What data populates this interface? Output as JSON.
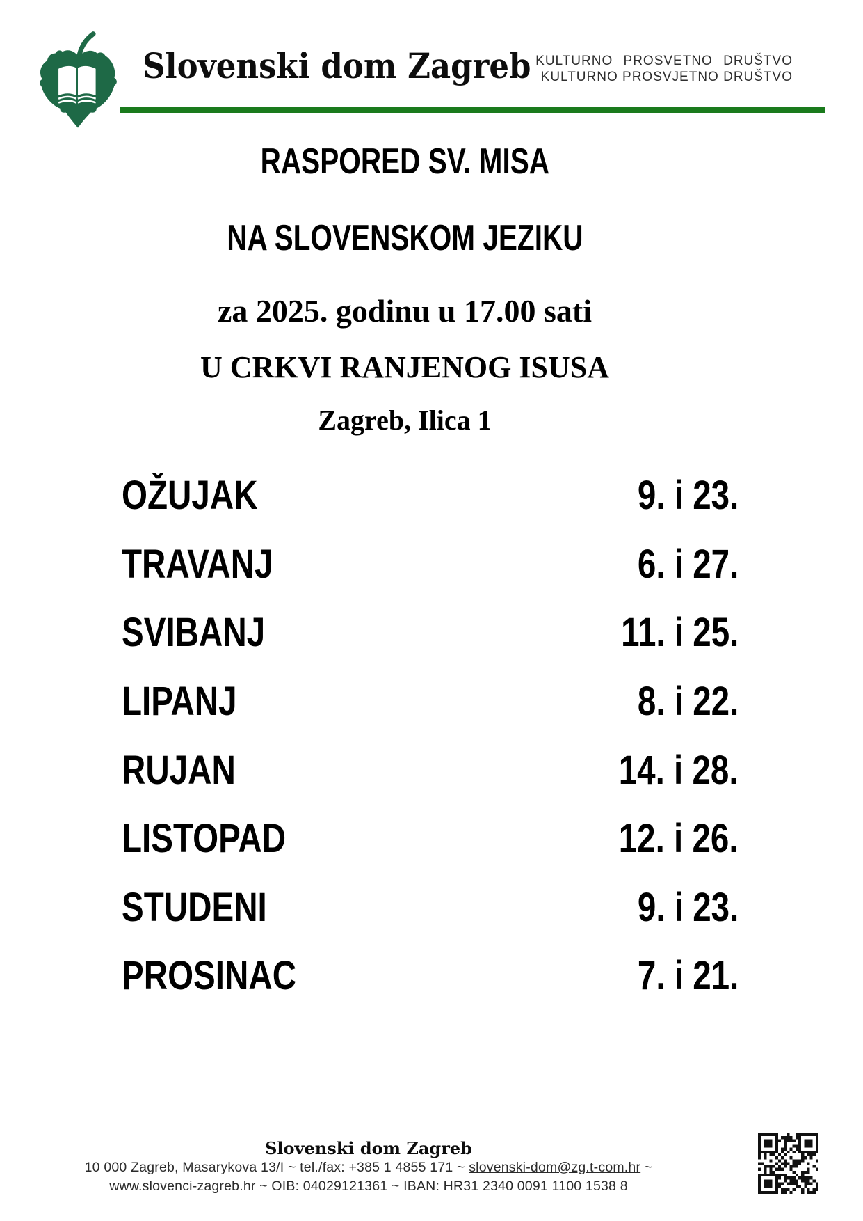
{
  "colors": {
    "leaf_green": "#1E6946",
    "rule_green": "#1A7A1C",
    "text_black": "#000000"
  },
  "header": {
    "logo_icon": "linden-leaf-open-book-logo",
    "org_title": "Slovenski dom Zagreb",
    "society_line_sl": "KULTURNO PROSVETNO DRUŠTVO",
    "society_line_hr": "KULTURNO PROSVJETNO DRUŠTVO"
  },
  "title": {
    "line1": "RASPORED SV. MISA",
    "line2": "NA SLOVENSKOM JEZIKU",
    "line3": "za 2025. godinu u 17.00 sati",
    "line4": "U CRKVI RANJENOG ISUSA",
    "line5": "Zagreb, Ilica 1"
  },
  "schedule": {
    "rows": [
      {
        "month": "OŽUJAK",
        "dates": "9. i 23."
      },
      {
        "month": "TRAVANJ",
        "dates": "6. i 27."
      },
      {
        "month": "SVIBANJ",
        "dates": "11. i 25."
      },
      {
        "month": "LIPANJ",
        "dates": "8. i 22."
      },
      {
        "month": "RUJAN",
        "dates": "14. i 28."
      },
      {
        "month": "LISTOPAD",
        "dates": "12. i 26."
      },
      {
        "month": "STUDENI",
        "dates": "9. i 23."
      },
      {
        "month": "PROSINAC",
        "dates": "7. i 21."
      }
    ]
  },
  "footer": {
    "org_title": "Slovenski dom Zagreb",
    "address_prefix": "10 000 Zagreb, Masarykova 13/I ~ tel./fax: +385 1 4855 171 ~ ",
    "email": "slovenski-dom@zg.t-com.hr",
    "address_suffix": " ~",
    "line2": "www.slovenci-zagreb.hr ~ OIB: 04029121361 ~ IBAN: HR31 2340 0091 1100 1538 8",
    "qr_icon": "qr-code"
  }
}
